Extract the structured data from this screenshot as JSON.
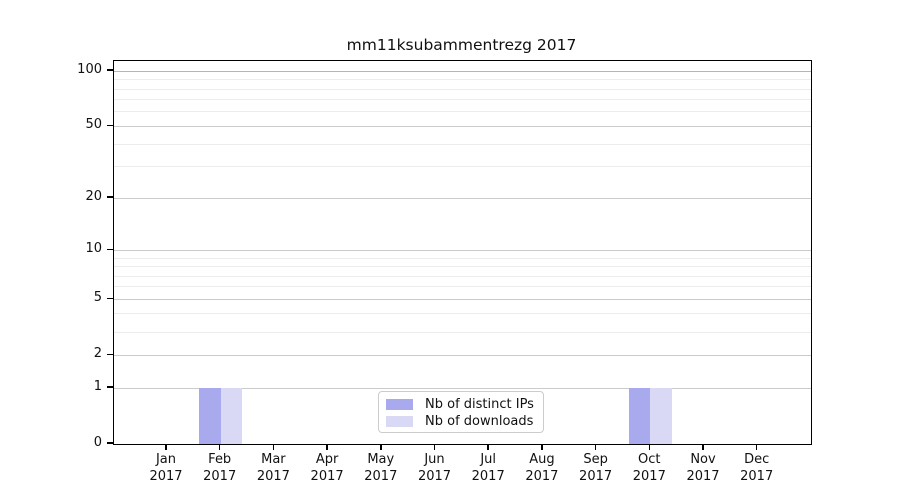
{
  "title": "mm11ksubammentrezg 2017",
  "chart_data": {
    "type": "bar",
    "title": "mm11ksubammentrezg 2017",
    "categories": [
      "Jan",
      "Feb",
      "Mar",
      "Apr",
      "May",
      "Jun",
      "Jul",
      "Aug",
      "Sep",
      "Oct",
      "Nov",
      "Dec"
    ],
    "category_year": "2017",
    "series": [
      {
        "name": "Nb of distinct IPs",
        "color": "#a9a9ee",
        "values": [
          0,
          1,
          0,
          0,
          0,
          0,
          0,
          0,
          0,
          1,
          0,
          0
        ]
      },
      {
        "name": "Nb of downloads",
        "color": "#d9d9f6",
        "values": [
          0,
          1,
          0,
          0,
          0,
          0,
          0,
          0,
          0,
          1,
          0,
          0
        ]
      }
    ],
    "xlabel": "",
    "ylabel": "",
    "y_axis": {
      "scale": "log1p",
      "tick_values": [
        0,
        1,
        2,
        5,
        10,
        20,
        50,
        100
      ],
      "minor_values": [
        3,
        4,
        6,
        7,
        8,
        9,
        30,
        40,
        60,
        70,
        80,
        90
      ],
      "range": [
        0,
        113
      ]
    },
    "grid": true,
    "legend_position": "lower center"
  }
}
